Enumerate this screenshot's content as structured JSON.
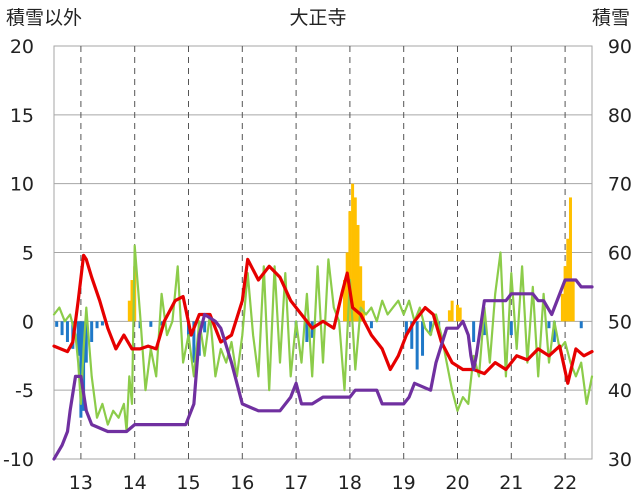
{
  "chart_data": {
    "type": "line",
    "title": "大正寺",
    "ylabel_left": "積雪以外",
    "ylabel_right": "積雪",
    "x_ticks": [
      "13",
      "14",
      "15",
      "16",
      "17",
      "18",
      "19",
      "20",
      "21",
      "22"
    ],
    "xlim": [
      12.5,
      22.5
    ],
    "ylim_left": [
      -10,
      20
    ],
    "ylim_right": [
      30,
      90
    ],
    "y_ticks_left": [
      "20",
      "15",
      "10",
      "5",
      "0",
      "-5",
      "-10"
    ],
    "y_ticks_right": [
      "90",
      "80",
      "70",
      "60",
      "50",
      "40",
      "30"
    ],
    "grid": {
      "horizontal": true,
      "vertical_dashed": true
    },
    "colors": {
      "temperature": "#e60000",
      "wind": "#8ccc4a",
      "snow_depth": "#7030a0",
      "precip_snow": "#ffc000",
      "precip_other": "#1f78c8",
      "grid": "#a6a6a6"
    },
    "series": [
      {
        "key": "temperature",
        "axis": "left",
        "x": [
          12.5,
          12.75,
          12.85,
          12.95,
          13.05,
          13.1,
          13.2,
          13.35,
          13.5,
          13.65,
          13.8,
          13.95,
          14.1,
          14.25,
          14.4,
          14.55,
          14.75,
          14.9,
          15.05,
          15.2,
          15.4,
          15.6,
          15.8,
          16.0,
          16.1,
          16.3,
          16.5,
          16.7,
          16.9,
          17.1,
          17.3,
          17.5,
          17.7,
          17.85,
          17.95,
          18.05,
          18.2,
          18.4,
          18.6,
          18.75,
          18.9,
          19.05,
          19.2,
          19.4,
          19.55,
          19.7,
          19.9,
          20.1,
          20.3,
          20.5,
          20.7,
          20.9,
          21.1,
          21.3,
          21.5,
          21.7,
          21.9,
          22.05,
          22.2,
          22.35,
          22.5
        ],
        "values": [
          -1.8,
          -2.2,
          -1.5,
          1.5,
          4.8,
          4.5,
          3.2,
          1.5,
          -0.5,
          -2.0,
          -1.0,
          -2.0,
          -2.0,
          -1.8,
          -2.0,
          0.0,
          1.5,
          1.8,
          -1.0,
          0.5,
          0.5,
          -1.5,
          -1.0,
          1.5,
          4.5,
          3.0,
          4.0,
          3.2,
          1.5,
          0.5,
          -0.5,
          0.0,
          -0.5,
          2.0,
          3.5,
          1.0,
          0.5,
          -1.0,
          -2.0,
          -3.5,
          -2.5,
          -1.0,
          0.0,
          1.0,
          0.5,
          -1.5,
          -3.0,
          -3.5,
          -3.5,
          -3.8,
          -3.0,
          -3.5,
          -2.5,
          -2.8,
          -2.0,
          -2.5,
          -1.8,
          -4.5,
          -2.0,
          -2.5,
          -2.2
        ]
      },
      {
        "key": "wind",
        "axis": "left",
        "x": [
          12.5,
          12.6,
          12.7,
          12.8,
          12.9,
          12.95,
          13.0,
          13.05,
          13.1,
          13.2,
          13.3,
          13.4,
          13.5,
          13.6,
          13.7,
          13.8,
          13.85,
          13.9,
          13.95,
          14.0,
          14.1,
          14.2,
          14.3,
          14.4,
          14.5,
          14.6,
          14.7,
          14.8,
          14.9,
          15.0,
          15.1,
          15.2,
          15.3,
          15.4,
          15.5,
          15.6,
          15.7,
          15.8,
          15.9,
          16.0,
          16.1,
          16.2,
          16.3,
          16.4,
          16.5,
          16.6,
          16.7,
          16.8,
          16.9,
          17.0,
          17.1,
          17.2,
          17.3,
          17.4,
          17.5,
          17.6,
          17.7,
          17.8,
          17.9,
          18.0,
          18.1,
          18.2,
          18.3,
          18.4,
          18.5,
          18.6,
          18.7,
          18.8,
          18.9,
          19.0,
          19.1,
          19.2,
          19.3,
          19.4,
          19.5,
          19.6,
          19.7,
          19.8,
          19.9,
          20.0,
          20.1,
          20.2,
          20.3,
          20.4,
          20.5,
          20.6,
          20.7,
          20.8,
          20.9,
          21.0,
          21.1,
          21.2,
          21.3,
          21.4,
          21.5,
          21.6,
          21.7,
          21.8,
          21.9,
          22.0,
          22.1,
          22.2,
          22.3,
          22.4,
          22.5
        ],
        "values": [
          0.5,
          1.0,
          0.0,
          0.5,
          -1.0,
          -3.0,
          -6.0,
          -2.0,
          1.0,
          -4.0,
          -7.0,
          -6.0,
          -7.5,
          -6.5,
          -7.0,
          -6.0,
          -8.0,
          -4.0,
          -6.0,
          5.5,
          0.5,
          -5.0,
          -2.0,
          -4.0,
          2.0,
          -1.0,
          0.0,
          4.0,
          -3.0,
          -1.0,
          -4.0,
          0.0,
          -2.5,
          0.5,
          -4.0,
          -2.0,
          -3.0,
          -1.5,
          -4.0,
          -1.0,
          3.5,
          -1.0,
          -4.0,
          4.0,
          -5.0,
          4.0,
          -3.0,
          3.5,
          -4.0,
          0.0,
          -3.0,
          2.0,
          -4.0,
          4.0,
          -3.0,
          4.5,
          1.0,
          0.0,
          -5.0,
          3.0,
          -3.5,
          1.0,
          0.5,
          1.0,
          0.0,
          1.5,
          0.5,
          1.0,
          1.5,
          0.5,
          1.5,
          0.0,
          1.0,
          -0.5,
          -1.0,
          0.5,
          -1.0,
          -3.0,
          -5.0,
          -6.5,
          -5.5,
          -6.0,
          -2.5,
          -4.0,
          1.0,
          -3.0,
          2.0,
          5.0,
          -4.0,
          3.5,
          -2.0,
          4.0,
          -3.0,
          2.5,
          -4.0,
          2.0,
          -3.0,
          0.0,
          -2.0,
          -1.5,
          -3.0,
          -4.0,
          -3.0,
          -6.0,
          -4.0
        ]
      },
      {
        "key": "snow_depth",
        "axis": "right",
        "x": [
          12.5,
          12.65,
          12.75,
          12.8,
          12.9,
          13.0,
          13.1,
          13.2,
          13.5,
          13.8,
          13.85,
          14.0,
          14.2,
          14.6,
          14.8,
          14.95,
          15.1,
          15.2,
          15.3,
          15.5,
          15.6,
          15.8,
          16.0,
          16.3,
          16.7,
          16.9,
          17.0,
          17.1,
          17.3,
          17.5,
          18.0,
          18.1,
          18.5,
          18.6,
          19.0,
          19.1,
          19.2,
          19.5,
          19.6,
          19.8,
          20.0,
          20.1,
          20.2,
          20.25,
          20.3,
          20.35,
          20.5,
          20.9,
          21.0,
          21.4,
          21.5,
          21.6,
          21.75,
          22.0,
          22.2,
          22.3,
          22.5
        ],
        "values": [
          30.0,
          32.0,
          34.0,
          37.0,
          42.0,
          42.0,
          37.0,
          35.0,
          34.0,
          34.0,
          34.0,
          35.0,
          35.0,
          35.0,
          35.0,
          35.0,
          38.0,
          48.0,
          51.0,
          50.0,
          49.0,
          44.0,
          38.0,
          37.0,
          37.0,
          39.0,
          41.0,
          38.0,
          38.0,
          39.0,
          39.0,
          40.0,
          40.0,
          38.0,
          38.0,
          39.0,
          41.0,
          40.0,
          44.0,
          49.0,
          49.0,
          50.0,
          48.0,
          45.0,
          43.0,
          45.0,
          53.0,
          53.0,
          54.0,
          54.0,
          53.0,
          53.0,
          51.0,
          56.0,
          56.0,
          55.0,
          55.0
        ]
      }
    ],
    "precipitation_bars": {
      "axis": "left",
      "snow_x": [
        13.9,
        13.95,
        14.0,
        17.9,
        17.95,
        18.0,
        18.05,
        18.1,
        18.15,
        18.2,
        18.25,
        19.85,
        19.9,
        20.0,
        20.05,
        21.95,
        22.0,
        22.05,
        22.1,
        22.15
      ],
      "snow_values": [
        1.5,
        3.0,
        4.0,
        3.0,
        5.0,
        8.0,
        10.0,
        9.0,
        7.0,
        4.0,
        1.5,
        0.8,
        1.5,
        1.2,
        1.0,
        2.0,
        4.0,
        6.0,
        9.0,
        3.0
      ],
      "other_x": [
        12.55,
        12.65,
        12.75,
        12.85,
        12.95,
        13.0,
        13.05,
        13.1,
        13.2,
        13.3,
        13.4,
        14.1,
        14.3,
        14.5,
        15.0,
        15.1,
        15.2,
        15.3,
        17.0,
        17.2,
        17.3,
        18.4,
        19.05,
        19.15,
        19.25,
        19.35,
        19.5,
        19.65,
        20.3,
        20.5,
        21.0,
        21.7,
        21.8,
        22.3
      ],
      "other_values": [
        -0.4,
        -1.0,
        -1.5,
        -2.0,
        -2.5,
        -7.0,
        -6.5,
        -3.0,
        -1.5,
        -0.5,
        -0.3,
        -0.5,
        -0.4,
        -0.3,
        -1.5,
        -3.0,
        -2.5,
        -0.8,
        -1.0,
        -1.5,
        -1.2,
        -0.5,
        -1.0,
        -2.0,
        -3.5,
        -2.5,
        -1.0,
        -0.5,
        -1.5,
        -1.0,
        -1.0,
        -0.5,
        -1.5,
        -0.5
      ]
    }
  }
}
